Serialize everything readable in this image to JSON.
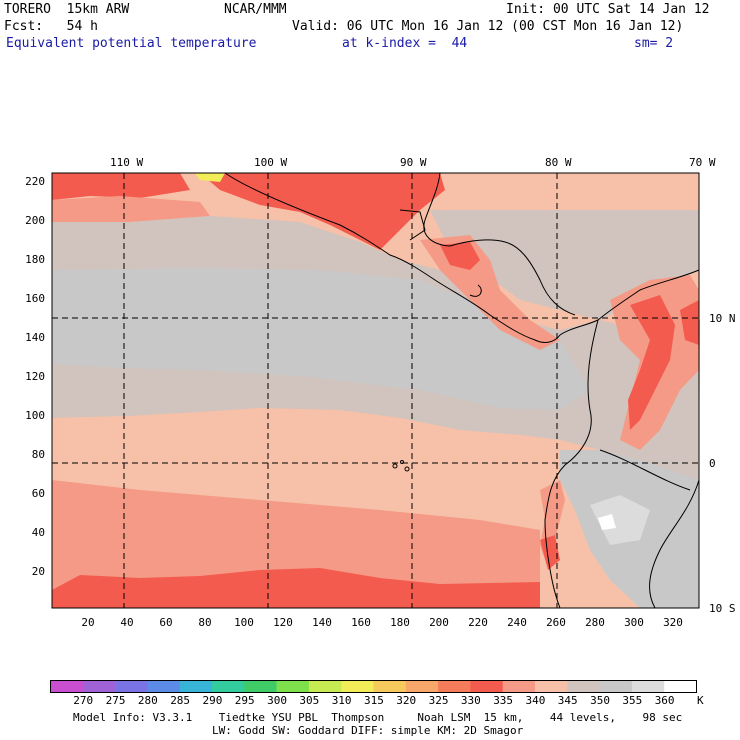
{
  "header": {
    "model": "TORERO  15km ARW",
    "org": "NCAR/MMM",
    "init": "Init: 00 UTC Sat 14 Jan 12",
    "fcst": "Fcst:   54 h",
    "valid": "Valid: 06 UTC Mon 16 Jan 12 (00 CST Mon 16 Jan 12)",
    "field": "Equivalent potential temperature",
    "level": "at k-index =  44",
    "smooth": "sm= 2"
  },
  "axes": {
    "top_lon_labels": [
      "110 W",
      "100 W",
      "90 W",
      "80 W",
      "70 W"
    ],
    "right_lat_labels": [
      "10 N",
      "0",
      "10 S"
    ],
    "left_y_ticks": [
      "220",
      "200",
      "180",
      "160",
      "140",
      "120",
      "100",
      "80",
      "60",
      "40",
      "20"
    ],
    "bottom_x_ticks": [
      "20",
      "40",
      "60",
      "80",
      "100",
      "120",
      "140",
      "160",
      "180",
      "200",
      "220",
      "240",
      "260",
      "280",
      "300",
      "320"
    ]
  },
  "colorbar": {
    "levels": [
      "270",
      "275",
      "280",
      "285",
      "290",
      "295",
      "300",
      "305",
      "310",
      "315",
      "320",
      "325",
      "330",
      "335",
      "340",
      "345",
      "350",
      "355",
      "360"
    ],
    "unit": "K",
    "colors": [
      "#c94fd0",
      "#9e62d6",
      "#7a73e6",
      "#5b8be6",
      "#38b5d6",
      "#33cc9e",
      "#3fcc66",
      "#7ee04a",
      "#c6ea52",
      "#f2ec58",
      "#f6c95c",
      "#f7a76a",
      "#f47c5a",
      "#f45b4f",
      "#f49a86",
      "#f6c1a8",
      "#d1c3bd",
      "#c8c8c8",
      "#dcdcdc",
      "#ffffff"
    ]
  },
  "footer": {
    "line1": "Model Info: V3.3.1    Tiedtke YSU PBL  Thompson     Noah LSM  15 km,    44 levels,    98 sec",
    "line2": "LW: Godd SW: Goddard DIFF: simple KM: 2D Smagor"
  }
}
